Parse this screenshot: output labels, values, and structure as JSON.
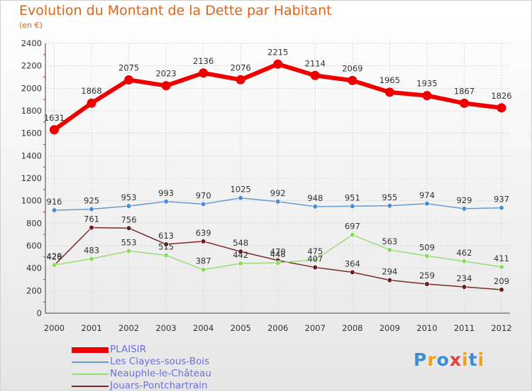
{
  "header": {
    "title": "Evolution du Montant de la Dette par Habitant",
    "subtitle": "(en €)"
  },
  "brand": {
    "letters": [
      "P",
      "r",
      "o",
      "x",
      "i",
      "t",
      "i"
    ],
    "colors": [
      "#3a8fd8",
      "#f0a020",
      "#3a8fd8",
      "#e04040",
      "#f0a020",
      "#3a8fd8",
      "#f0a020"
    ]
  },
  "chart_data": {
    "type": "line",
    "title": "Evolution du Montant de la Dette par Habitant",
    "subtitle": "(en €)",
    "x": [
      2000,
      2001,
      2002,
      2003,
      2004,
      2005,
      2006,
      2007,
      2008,
      2009,
      2010,
      2011,
      2012
    ],
    "ylim": [
      0,
      2400
    ],
    "yticks": [
      0,
      200,
      400,
      600,
      800,
      1000,
      1200,
      1400,
      1600,
      1800,
      2000,
      2200,
      2400
    ],
    "grid": true,
    "legend_position": "bottom-left",
    "series": [
      {
        "name": "PLAISIR",
        "color": "#ee0000",
        "values": [
          1631,
          1868,
          2075,
          2023,
          2136,
          2076,
          2215,
          2114,
          2069,
          1965,
          1935,
          1867,
          1826
        ]
      },
      {
        "name": "Les Clayes-sous-Bois",
        "color": "#6699cc",
        "marker": "#4a8cd8",
        "values": [
          916,
          925,
          953,
          993,
          970,
          1025,
          992,
          948,
          951,
          955,
          974,
          929,
          937
        ]
      },
      {
        "name": "Neauphle-le-Château",
        "color": "#99dd77",
        "marker": "#88dd55",
        "values": [
          429,
          483,
          553,
          515,
          387,
          442,
          448,
          475,
          697,
          563,
          509,
          462,
          411
        ]
      },
      {
        "name": "Jouars-Pontchartrain",
        "color": "#7a2a2a",
        "marker": "#6a1a1a",
        "values": [
          426,
          761,
          756,
          613,
          639,
          548,
          470,
          407,
          364,
          294,
          259,
          234,
          209
        ]
      }
    ]
  }
}
